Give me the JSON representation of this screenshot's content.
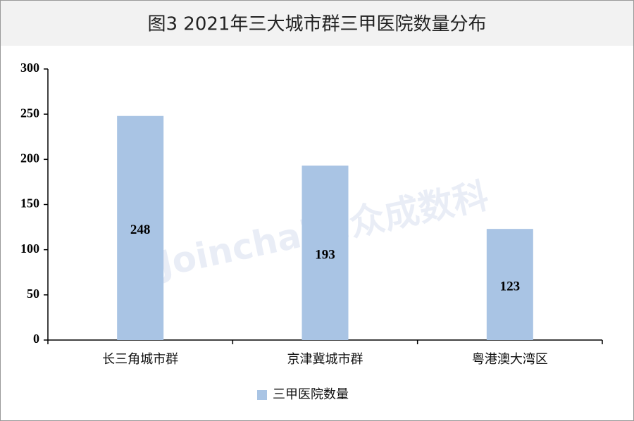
{
  "chart_data": {
    "type": "bar",
    "title": "图3  2021年三大城市群三甲医院数量分布",
    "categories": [
      "长三角城市群",
      "京津冀城市群",
      "粤港澳大湾区"
    ],
    "series": [
      {
        "name": "三甲医院数量",
        "color": "#a9c4e4",
        "values": [
          248,
          193,
          123
        ]
      }
    ],
    "ylim": [
      0,
      300
    ],
    "yticks": [
      0,
      50,
      100,
      150,
      200,
      250,
      300
    ],
    "grid": false,
    "legend": "bottom",
    "watermark": "Joinchain.众成数科"
  }
}
